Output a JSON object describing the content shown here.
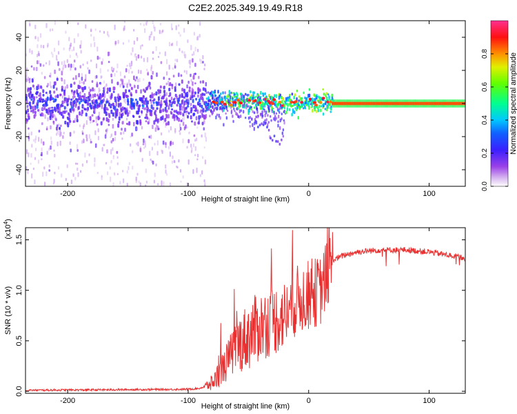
{
  "title": "C2E2.2025.349.19.49.R18",
  "chart_data": [
    {
      "type": "heatmap",
      "xlabel": "Height of straight line (km)",
      "ylabel": "Frequency (Hz)",
      "xlim": [
        -235,
        130
      ],
      "ylim": [
        -50,
        50
      ],
      "xticks": [
        -200,
        -100,
        0,
        100
      ],
      "yticks": [
        -40,
        -20,
        0,
        20,
        40
      ],
      "description_regions": [
        {
          "x_range": [
            -235,
            -85
          ],
          "note": "broad scattered noise, strong band near 0 Hz"
        },
        {
          "x_range": [
            -85,
            20
          ],
          "note": "concentrated spectral peak near 0 Hz with bright spots"
        },
        {
          "x_range": [
            20,
            130
          ],
          "note": "narrow high-amplitude line at 0 Hz"
        }
      ],
      "colorbar": {
        "label": "Normalized spectral amplitude",
        "range": [
          0.0,
          1.0
        ],
        "ticks": [
          0.0,
          0.2,
          0.4,
          0.6,
          0.8
        ],
        "tick_labels": [
          "0.0",
          "0.2",
          "0.4",
          "0.6",
          "0.8"
        ],
        "colors": [
          "#ffffff",
          "#d8b8f0",
          "#8a2be2",
          "#2020ff",
          "#00c0ff",
          "#00ff80",
          "#a0ff00",
          "#ffe000",
          "#ff8000",
          "#ff0000",
          "#ff40a0"
        ]
      }
    },
    {
      "type": "line",
      "xlabel": "Height of straight line (km)",
      "ylabel": "SNR (10 * v/v)",
      "multiplier": "(x10",
      "multiplier_exp": "4",
      "multiplier_close": ")",
      "xlim": [
        -235,
        130
      ],
      "ylim": [
        -0.02,
        1.62
      ],
      "xticks": [
        -200,
        -100,
        0,
        100
      ],
      "yticks": [
        0.0,
        0.5,
        1.0,
        1.5
      ],
      "ytick_labels": [
        "0.0",
        "0.5",
        "1.0",
        "1.5"
      ],
      "line_color": "#e83030",
      "series_envelope": {
        "x": [
          -235,
          -100,
          -90,
          -80,
          -70,
          -60,
          -50,
          -40,
          -30,
          -20,
          -10,
          0,
          10,
          20,
          30,
          40,
          60,
          80,
          100,
          110,
          130
        ],
        "y": [
          0.01,
          0.02,
          0.03,
          0.08,
          0.25,
          0.45,
          0.55,
          0.65,
          0.7,
          0.75,
          0.9,
          0.95,
          1.0,
          1.3,
          1.35,
          1.38,
          1.4,
          1.4,
          1.38,
          1.36,
          1.32
        ]
      }
    }
  ]
}
